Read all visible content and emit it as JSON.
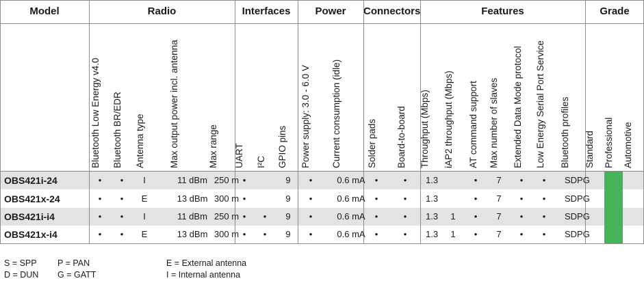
{
  "groups": {
    "model": "Model",
    "radio": "Radio",
    "interfaces": "Interfaces",
    "power": "Power",
    "connectors": "Connectors",
    "features": "Features",
    "grade": "Grade"
  },
  "columns": [
    "Bluetooth Low Energy v4.0",
    "Bluetooth BR/EDR",
    "Antenna type",
    "Max output power incl. antenna",
    "Max range",
    "UART",
    "I²C",
    "GPIO pins",
    "Power supply: 3.0 - 6.0 V",
    "Current consumption (idle)",
    "Solder pads",
    "Board-to-board",
    "Throughput (Mbps)",
    "iAP2 throughput (Mbps)",
    "AT command support",
    "Max number of slaves",
    "Extended Data Mode protocol",
    "Low Energy Serial Port Service",
    "Bluetooth profiles",
    "Standard",
    "Professional",
    "Automotive"
  ],
  "rows": [
    {
      "model": "OBS421i-24",
      "cells": [
        "•",
        "•",
        "I",
        "11 dBm",
        "250 m",
        "•",
        "",
        "9",
        "•",
        "0.6 mA",
        "•",
        "•",
        "1.3",
        "",
        "•",
        "7",
        "•",
        "•",
        "SDPG",
        "",
        "",
        ""
      ]
    },
    {
      "model": "OBS421x-24",
      "cells": [
        "•",
        "•",
        "E",
        "13 dBm",
        "300 m",
        "•",
        "",
        "9",
        "•",
        "0.6 mA",
        "•",
        "•",
        "1.3",
        "",
        "•",
        "7",
        "•",
        "•",
        "SDPG",
        "",
        "",
        ""
      ]
    },
    {
      "model": "OBS421i-i4",
      "cells": [
        "•",
        "•",
        "I",
        "11 dBm",
        "250 m",
        "•",
        "•",
        "9",
        "•",
        "0.6 mA",
        "•",
        "•",
        "1.3",
        "1",
        "•",
        "7",
        "•",
        "•",
        "SDPG",
        "",
        "",
        ""
      ]
    },
    {
      "model": "OBS421x-i4",
      "cells": [
        "•",
        "•",
        "E",
        "13 dBm",
        "300 m",
        "•",
        "•",
        "9",
        "•",
        "0.6 mA",
        "•",
        "•",
        "1.3",
        "1",
        "•",
        "7",
        "•",
        "•",
        "SDPG",
        "",
        "",
        ""
      ]
    }
  ],
  "grade_highlight": {
    "column": "Professional",
    "color": "#46b35a"
  },
  "colors": {
    "row_shade": "#e3e3e3",
    "grid": "#8c8c8c"
  },
  "legend": {
    "s": "S = SPP",
    "p": "P = PAN",
    "d": "D = DUN",
    "g": "G = GATT",
    "e": "E = External antenna",
    "i": "I = Internal antenna"
  }
}
